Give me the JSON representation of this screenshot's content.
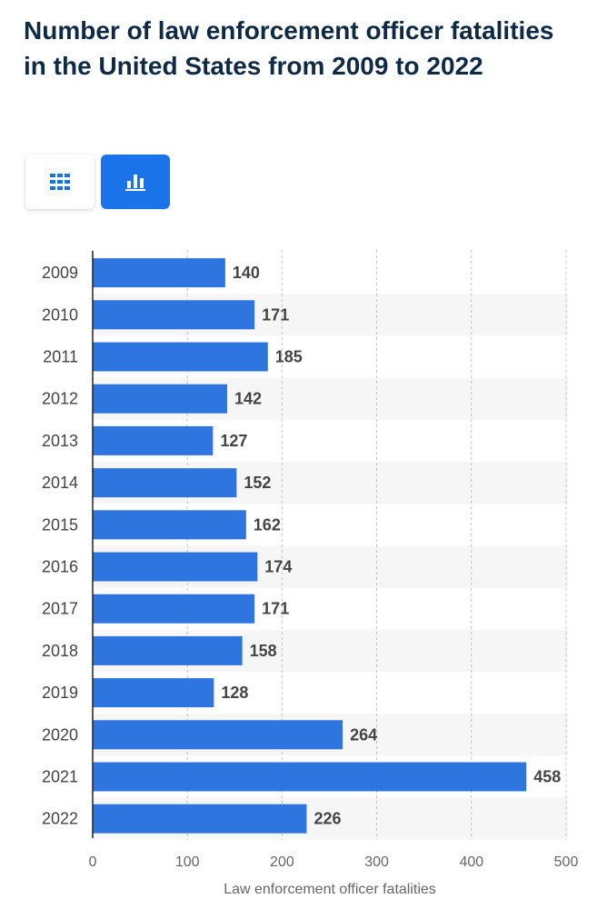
{
  "title": "Number of law enforcement officer fatalities in the United States from 2009 to 2022",
  "view_toggle": {
    "table_icon": "grid-table-icon",
    "chart_icon": "bar-chart-icon",
    "active": "chart"
  },
  "colors": {
    "bar": "#2f75e0",
    "title": "#0f2a44",
    "active_toggle": "#1a73e8",
    "stripe": "#f6f6f6"
  },
  "chart_data": {
    "type": "bar",
    "orientation": "horizontal",
    "categories": [
      "2009",
      "2010",
      "2011",
      "2012",
      "2013",
      "2014",
      "2015",
      "2016",
      "2017",
      "2018",
      "2019",
      "2020",
      "2021",
      "2022"
    ],
    "values": [
      140,
      171,
      185,
      142,
      127,
      152,
      162,
      174,
      171,
      158,
      128,
      264,
      458,
      226
    ],
    "title": "Number of law enforcement officer fatalities in the United States from 2009 to 2022",
    "xlabel": "Law enforcement officer fatalities",
    "ylabel": "",
    "xlim": [
      0,
      500
    ],
    "xticks": [
      0,
      100,
      200,
      300,
      400,
      500
    ],
    "grid": true
  }
}
